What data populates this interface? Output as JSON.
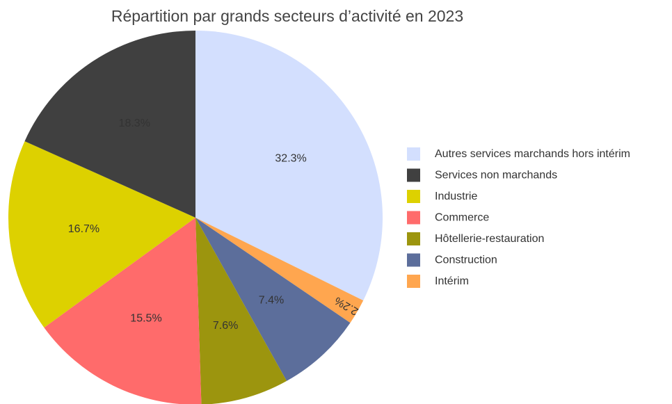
{
  "chart_data": {
    "type": "pie",
    "title": "Répartition par grands secteurs d’activité en 2023",
    "slices": [
      {
        "name": "Autres services marchands hors intérim",
        "value": 32.3,
        "label": "32.3%",
        "color": "#d3dffe"
      },
      {
        "name": "Intérim",
        "value": 2.2,
        "label": "2.2%",
        "color": "#ffa64f"
      },
      {
        "name": "Construction",
        "value": 7.4,
        "label": "7.4%",
        "color": "#5c6e9b"
      },
      {
        "name": "Hôtellerie-restauration",
        "value": 7.6,
        "label": "7.6%",
        "color": "#9c950e"
      },
      {
        "name": "Commerce",
        "value": 15.5,
        "label": "15.5%",
        "color": "#ff6b6b"
      },
      {
        "name": "Industrie",
        "value": 16.7,
        "label": "16.7%",
        "color": "#ddd100"
      },
      {
        "name": "Services non marchands",
        "value": 18.3,
        "label": "18.3%",
        "color": "#404040"
      }
    ],
    "legend": {
      "placement": "right",
      "items": [
        {
          "name": "Autres services marchands hors intérim",
          "color": "#d3dffe"
        },
        {
          "name": "Services non marchands",
          "color": "#404040"
        },
        {
          "name": "Industrie",
          "color": "#ddd100"
        },
        {
          "name": "Commerce",
          "color": "#ff6b6b"
        },
        {
          "name": "Hôtellerie-restauration",
          "color": "#9c950e"
        },
        {
          "name": "Construction",
          "color": "#5c6e9b"
        },
        {
          "name": "Intérim",
          "color": "#ffa64f"
        }
      ]
    }
  }
}
